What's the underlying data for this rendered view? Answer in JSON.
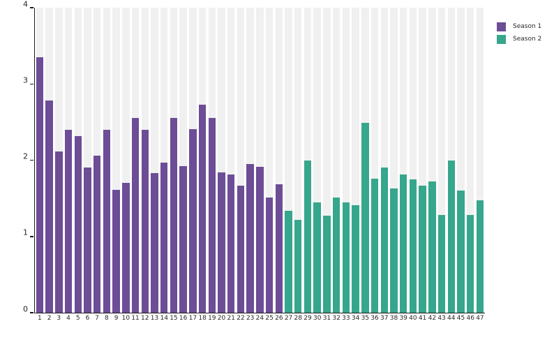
{
  "chart_data": {
    "type": "bar",
    "title": "",
    "xlabel": "",
    "ylabel": "",
    "ylim": [
      0,
      4
    ],
    "grid": "off",
    "legend_position": "top-right-outside",
    "plot_band_color": "#f0f0f0",
    "axis_color": "#1a1a1a",
    "y_axis": {
      "labels": [
        "0",
        "1",
        "2",
        "3",
        "4"
      ]
    },
    "x_axis": {
      "labels": [
        "1",
        "2",
        "3",
        "4",
        "5",
        "6",
        "7",
        "8",
        "9",
        "10",
        "11",
        "12",
        "13",
        "14",
        "15",
        "16",
        "17",
        "18",
        "19",
        "20",
        "21",
        "22",
        "23",
        "24",
        "25",
        "26",
        "27",
        "28",
        "29",
        "30",
        "31",
        "32",
        "33",
        "34",
        "35",
        "36",
        "37",
        "38",
        "39",
        "40",
        "41",
        "42",
        "43",
        "44",
        "45",
        "46",
        "47"
      ]
    },
    "series": [
      {
        "name": "Season 1",
        "color": "#6c4d96",
        "start_category": "1",
        "values": [
          3.35,
          2.78,
          2.11,
          2.4,
          2.32,
          1.9,
          2.06,
          2.4,
          1.61,
          1.7,
          2.55,
          2.4,
          1.83,
          1.97,
          2.55,
          1.92,
          2.41,
          2.73,
          2.55,
          1.84,
          1.81,
          1.67,
          1.95,
          1.91,
          1.51,
          1.68
        ]
      },
      {
        "name": "Season 2",
        "color": "#36a68c",
        "start_category": "27",
        "values": [
          1.34,
          1.22,
          2.0,
          1.45,
          1.27,
          1.51,
          1.45,
          1.41,
          2.49,
          1.76,
          1.9,
          1.63,
          1.81,
          1.75,
          1.67,
          1.72,
          1.28,
          2.0,
          1.6,
          1.28,
          1.47
        ]
      }
    ]
  },
  "legend": {
    "items": [
      {
        "label": "Season 1",
        "color": "#6c4d96"
      },
      {
        "label": "Season 2",
        "color": "#36a68c"
      }
    ]
  }
}
